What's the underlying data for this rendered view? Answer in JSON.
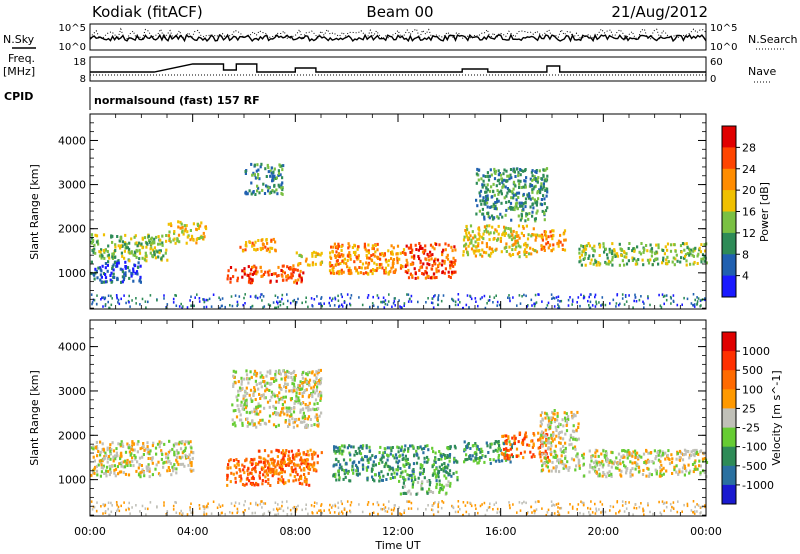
{
  "header": {
    "station": "Kodiak (fitACF)",
    "beam": "Beam 00",
    "date": "21/Aug/2012"
  },
  "top_panels": {
    "nsky_label": "N.Sky",
    "nsearch_label": "N.Search",
    "nsky_ticks": [
      "10^5",
      "10^0"
    ],
    "nsearch_ticks": [
      "10^5",
      "10^0"
    ],
    "freq_label_1": "Freq.",
    "freq_label_2": "[MHz]",
    "freq_ticks": [
      "18",
      "8"
    ],
    "nave_label": "Nave",
    "nave_ticks": [
      "60",
      "0"
    ],
    "cpid_label": "CPID",
    "cpid_text": "normalsound (fast) 157 RF"
  },
  "chart_data": [
    {
      "type": "heatmap",
      "name": "power-panel",
      "ylabel": "Slant Range [km]",
      "xlabel": "Time UT",
      "x_ticks": [
        "00:00",
        "04:00",
        "08:00",
        "12:00",
        "16:00",
        "20:00",
        "00:00"
      ],
      "xlim_hours": [
        0,
        24
      ],
      "ylim": [
        180,
        4600
      ],
      "y_ticks": [
        "1000",
        "2000",
        "3000",
        "4000"
      ],
      "colorbar": {
        "label": "Power [dB]",
        "ticks": [
          "4",
          "8",
          "12",
          "16",
          "20",
          "24",
          "28"
        ],
        "colors": [
          "#1a1aff",
          "#2060b0",
          "#2e8b57",
          "#7ac043",
          "#f0c000",
          "#ff8c00",
          "#ff4500",
          "#e00000"
        ]
      },
      "regions": [
        {
          "t0": 0.0,
          "t1": 3.0,
          "r0": 1300,
          "r1": 1900,
          "level": 3
        },
        {
          "t0": 0.0,
          "t1": 2.0,
          "r0": 800,
          "r1": 1300,
          "level": 1
        },
        {
          "t0": 3.0,
          "t1": 4.5,
          "r0": 1700,
          "r1": 2200,
          "level": 4
        },
        {
          "t0": 5.3,
          "t1": 8.3,
          "r0": 800,
          "r1": 1200,
          "level": 6
        },
        {
          "t0": 5.8,
          "t1": 7.2,
          "r0": 1500,
          "r1": 1800,
          "level": 5
        },
        {
          "t0": 8.0,
          "t1": 9.0,
          "r0": 1200,
          "r1": 1500,
          "level": 4
        },
        {
          "t0": 9.3,
          "t1": 12.2,
          "r0": 1000,
          "r1": 1700,
          "level": 5
        },
        {
          "t0": 12.2,
          "t1": 14.2,
          "r0": 900,
          "r1": 1700,
          "level": 6
        },
        {
          "t0": 14.5,
          "t1": 17.5,
          "r0": 1400,
          "r1": 2100,
          "level": 4
        },
        {
          "t0": 17.5,
          "t1": 18.5,
          "r0": 1500,
          "r1": 2000,
          "level": 5
        },
        {
          "t0": 19.0,
          "t1": 24.0,
          "r0": 1200,
          "r1": 1700,
          "level": 3
        },
        {
          "t0": 6.0,
          "t1": 7.5,
          "r0": 2800,
          "r1": 3500,
          "level": 2
        },
        {
          "t0": 15.0,
          "t1": 17.8,
          "r0": 2200,
          "r1": 3400,
          "level": 2
        }
      ]
    },
    {
      "type": "heatmap",
      "name": "velocity-panel",
      "ylabel": "Slant Range [km]",
      "xlabel": "Time UT",
      "x_ticks": [
        "00:00",
        "04:00",
        "08:00",
        "12:00",
        "16:00",
        "20:00",
        "00:00"
      ],
      "xlim_hours": [
        0,
        24
      ],
      "ylim": [
        180,
        4600
      ],
      "y_ticks": [
        "1000",
        "2000",
        "3000",
        "4000"
      ],
      "colorbar": {
        "label": "Velocity [m s^-1]",
        "ticks": [
          "1000",
          "500",
          "100",
          "25",
          "-25",
          "-100",
          "-500",
          "-1000"
        ],
        "colors": [
          "#1a1ad0",
          "#2a70a0",
          "#2e8b57",
          "#66cc33",
          "#c0c0b8",
          "#ff9900",
          "#ff6a00",
          "#ff3000",
          "#e00000"
        ]
      },
      "regions": [
        {
          "t0": 0.0,
          "t1": 4.0,
          "r0": 1100,
          "r1": 1900,
          "level": 4
        },
        {
          "t0": 5.3,
          "t1": 8.5,
          "r0": 900,
          "r1": 1500,
          "level": 6
        },
        {
          "t0": 6.5,
          "t1": 9.0,
          "r0": 1200,
          "r1": 1700,
          "level": 6
        },
        {
          "t0": 9.4,
          "t1": 14.3,
          "r0": 1000,
          "r1": 1800,
          "level": 2
        },
        {
          "t0": 12.0,
          "t1": 14.0,
          "r0": 700,
          "r1": 1000,
          "level": 3
        },
        {
          "t0": 14.5,
          "t1": 16.5,
          "r0": 1400,
          "r1": 1900,
          "level": 2
        },
        {
          "t0": 16.0,
          "t1": 17.8,
          "r0": 1500,
          "r1": 2100,
          "level": 6
        },
        {
          "t0": 17.5,
          "t1": 19.0,
          "r0": 1200,
          "r1": 2600,
          "level": 4
        },
        {
          "t0": 19.0,
          "t1": 24.0,
          "r0": 1100,
          "r1": 1700,
          "level": 4
        },
        {
          "t0": 5.5,
          "t1": 9.0,
          "r0": 2200,
          "r1": 3500,
          "level": 4
        }
      ]
    }
  ]
}
